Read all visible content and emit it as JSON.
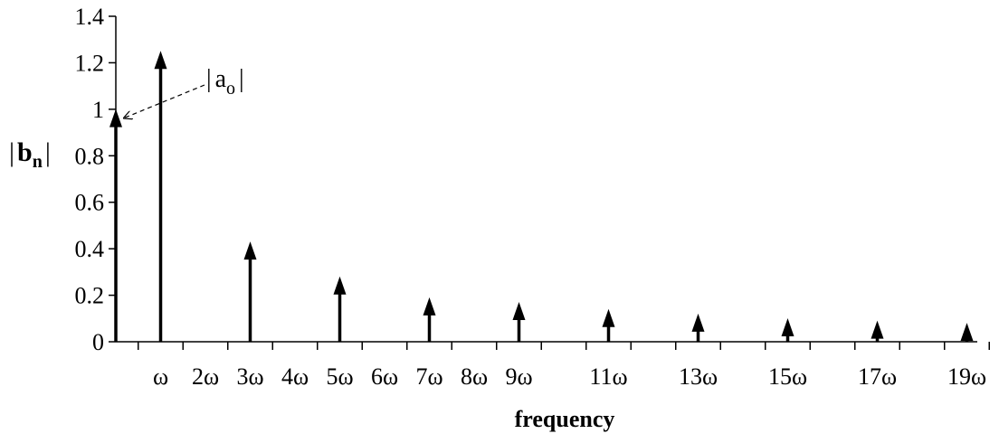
{
  "chart_data": {
    "type": "stem",
    "xlabel": "frequency",
    "ylabel": {
      "bar_left": "|",
      "main": "b",
      "sub": "n",
      "bar_right": "|"
    },
    "ylim": [
      0,
      1.4
    ],
    "yticks": [
      "0",
      "0.2",
      "0.4",
      "0.6",
      "0.8",
      "1",
      "1.2",
      "1.4"
    ],
    "xticks": [
      "ω",
      "2ω",
      "3ω",
      "4ω",
      "5ω",
      "6ω",
      "7ω",
      "8ω",
      "9ω",
      "11ω",
      "13ω",
      "15ω",
      "17ω",
      "19ω"
    ],
    "grid": false,
    "series": [
      {
        "x": [
          0,
          1,
          3,
          5,
          7,
          9,
          11,
          13,
          15,
          17,
          19
        ],
        "values": [
          0.97,
          1.22,
          0.4,
          0.25,
          0.16,
          0.14,
          0.11,
          0.09,
          0.07,
          0.06,
          0.05
        ]
      }
    ],
    "annotation": {
      "bar_left": "|",
      "main": "a",
      "sub": "o",
      "bar_right": "|",
      "points_to_x": 0
    }
  }
}
